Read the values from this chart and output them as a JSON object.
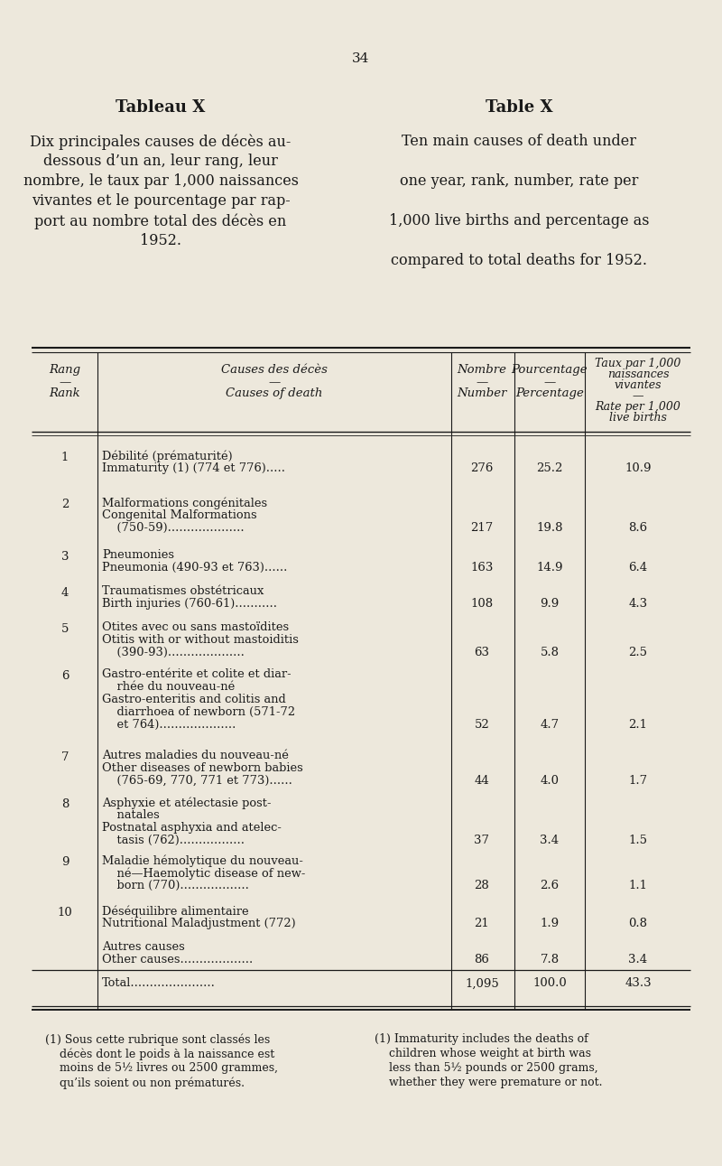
{
  "page_number": "34",
  "bg_color": "#ede8dc",
  "text_color": "#1a1a1a",
  "title_left": "Tableau X",
  "title_right": "Table X",
  "subtitle_left": "Dix principales causes de décès au-\ndessous d’un an, leur rang, leur\nnombre, le taux par 1,000 naissances\nvivantes et le pourcentage par rap-\nport au nombre total des décès en\n1952.",
  "subtitle_right": "Ten main causes of death under\n\none year, rank, number, rate per\n\n1,000 live births and percentage as\n\ncompared to total deaths for 1952.",
  "rows": [
    {
      "rank": "1",
      "cause_lines": [
        "Débilité (prématurité)",
        "Immaturity (1) (774 et 776)....."
      ],
      "number": "276",
      "percentage": "25.2",
      "rate": "10.9",
      "num_align": "bottom"
    },
    {
      "rank": "2",
      "cause_lines": [
        "Malformations congénitales",
        "Congenital Malformations",
        "    (750-59)...................."
      ],
      "number": "217",
      "percentage": "19.8",
      "rate": "8.6",
      "num_align": "bottom"
    },
    {
      "rank": "3",
      "cause_lines": [
        "Pneumonies",
        "Pneumonia (490-93 et 763)......"
      ],
      "number": "163",
      "percentage": "14.9",
      "rate": "6.4",
      "num_align": "bottom"
    },
    {
      "rank": "4",
      "cause_lines": [
        "Traumatismes obstétricaux",
        "Birth injuries (760-61)..........."
      ],
      "number": "108",
      "percentage": "9.9",
      "rate": "4.3",
      "num_align": "bottom"
    },
    {
      "rank": "5",
      "cause_lines": [
        "Otites avec ou sans mastoïdites",
        "Otitis with or without mastoiditis",
        "    (390-93)...................."
      ],
      "number": "63",
      "percentage": "5.8",
      "rate": "2.5",
      "num_align": "bottom"
    },
    {
      "rank": "6",
      "cause_lines": [
        "Gastro-entérite et colite et diar-",
        "    rhée du nouveau-né",
        "Gastro-enteritis and colitis and",
        "    diarrhoea of newborn (571-72",
        "    et 764)...................."
      ],
      "number": "52",
      "percentage": "4.7",
      "rate": "2.1",
      "num_align": "bottom"
    },
    {
      "rank": "7",
      "cause_lines": [
        "Autres maladies du nouveau-né",
        "Other diseases of newborn babies",
        "    (765-69, 770, 771 et 773)......"
      ],
      "number": "44",
      "percentage": "4.0",
      "rate": "1.7",
      "num_align": "bottom"
    },
    {
      "rank": "8",
      "cause_lines": [
        "Asphyxie et atélectasie post-",
        "    natales",
        "Postnatal asphyxia and atelec-",
        "    tasis (762)................."
      ],
      "number": "37",
      "percentage": "3.4",
      "rate": "1.5",
      "num_align": "bottom"
    },
    {
      "rank": "9",
      "cause_lines": [
        "Maladie hémolytique du nouveau-",
        "    né—Haemolytic disease of new-",
        "    born (770).................."
      ],
      "number": "28",
      "percentage": "2.6",
      "rate": "1.1",
      "num_align": "bottom"
    },
    {
      "rank": "10",
      "cause_lines": [
        "Déséquilibre alimentaire",
        "Nutritional Maladjustment (772)"
      ],
      "number": "21",
      "percentage": "1.9",
      "rate": "0.8",
      "num_align": "bottom"
    },
    {
      "rank": "",
      "cause_lines": [
        "Autres causes",
        "Other causes..................."
      ],
      "number": "86",
      "percentage": "7.8",
      "rate": "3.4",
      "num_align": "bottom"
    },
    {
      "rank": "",
      "cause_lines": [
        "Total......................"
      ],
      "number": "1,095",
      "percentage": "100.0",
      "rate": "43.3",
      "num_align": "middle"
    }
  ],
  "footnote_left_lines": [
    "(1) Sous cette rubrique sont classés les",
    "    décès dont le poids à la naissance est",
    "    moins de 5½ livres ou 2500 grammes,",
    "    qu’ils soient ou non prématurés."
  ],
  "footnote_right_lines": [
    "(1) Immaturity includes the deaths of",
    "    children whose weight at birth was",
    "    less than 5½ pounds or 2500 grams,",
    "    whether they were premature or not."
  ]
}
